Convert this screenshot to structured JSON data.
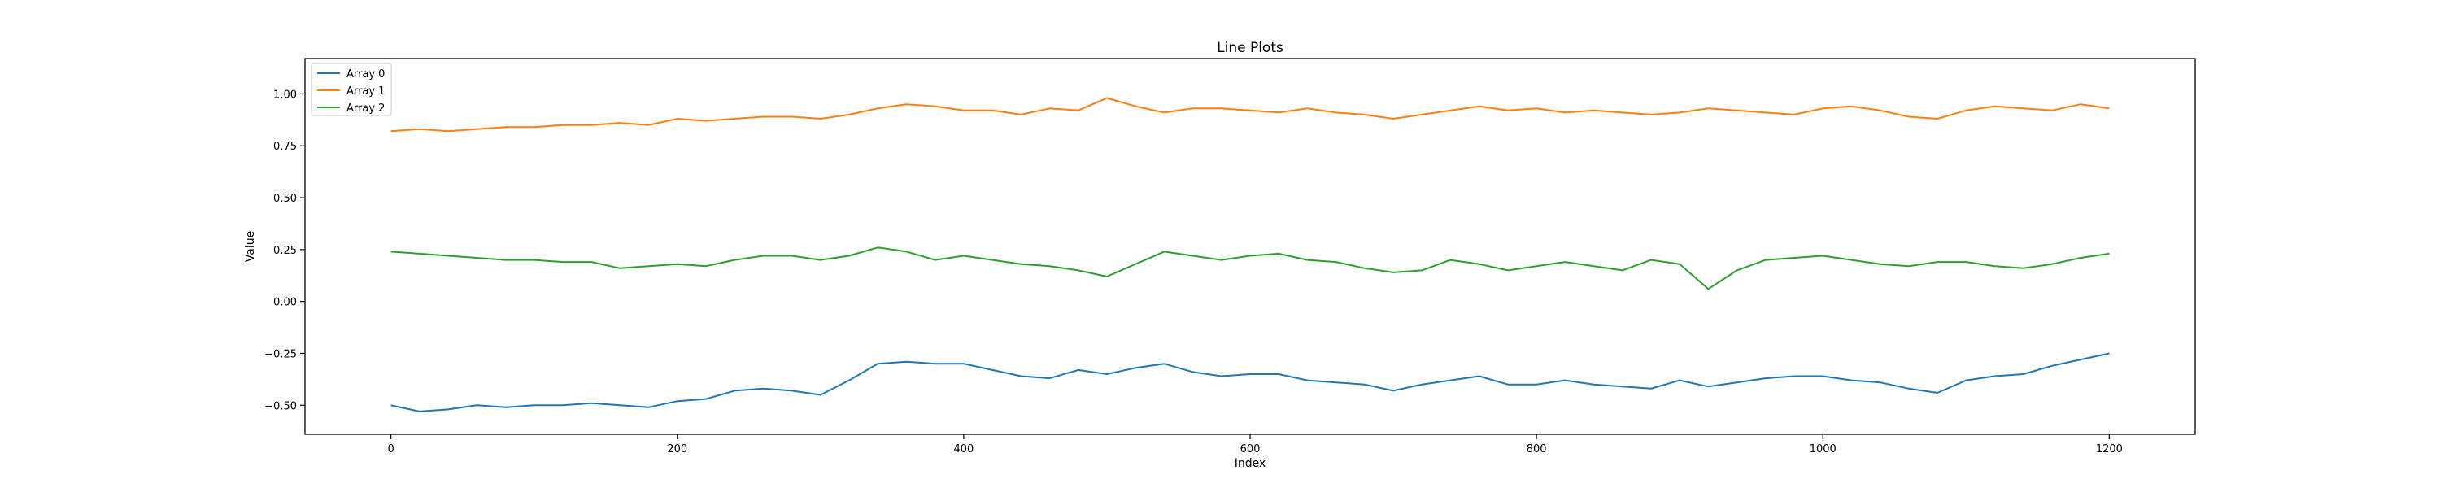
{
  "chart_data": {
    "type": "line",
    "title": "Line Plots",
    "xlabel": "Index",
    "ylabel": "Value",
    "xlim": [
      -60,
      1260
    ],
    "ylim": [
      -0.64,
      1.17
    ],
    "xticks": [
      0,
      200,
      400,
      600,
      800,
      1000,
      1200
    ],
    "xtick_labels": [
      "0",
      "200",
      "400",
      "600",
      "800",
      "1000",
      "1200"
    ],
    "yticks": [
      -0.5,
      -0.25,
      0.0,
      0.25,
      0.5,
      0.75,
      1.0
    ],
    "ytick_labels": [
      "−0.50",
      "−0.25",
      "0.00",
      "0.25",
      "0.50",
      "0.75",
      "1.00"
    ],
    "legend_position": "top-left",
    "grid": false,
    "series": [
      {
        "name": "Array 0",
        "color": "#1f77b4",
        "x": [
          0,
          20,
          40,
          60,
          80,
          100,
          120,
          140,
          160,
          180,
          200,
          220,
          240,
          260,
          280,
          300,
          320,
          340,
          360,
          380,
          400,
          420,
          440,
          460,
          480,
          500,
          520,
          540,
          560,
          580,
          600,
          620,
          640,
          660,
          680,
          700,
          720,
          740,
          760,
          780,
          800,
          820,
          840,
          860,
          880,
          900,
          920,
          940,
          960,
          980,
          1000,
          1020,
          1040,
          1060,
          1080,
          1100,
          1120,
          1140,
          1160,
          1180,
          1200
        ],
        "values": [
          -0.5,
          -0.53,
          -0.52,
          -0.5,
          -0.51,
          -0.5,
          -0.5,
          -0.49,
          -0.5,
          -0.51,
          -0.48,
          -0.47,
          -0.43,
          -0.42,
          -0.43,
          -0.45,
          -0.38,
          -0.3,
          -0.29,
          -0.3,
          -0.3,
          -0.33,
          -0.36,
          -0.37,
          -0.33,
          -0.35,
          -0.32,
          -0.3,
          -0.34,
          -0.36,
          -0.35,
          -0.35,
          -0.38,
          -0.39,
          -0.4,
          -0.43,
          -0.4,
          -0.38,
          -0.36,
          -0.4,
          -0.4,
          -0.38,
          -0.4,
          -0.41,
          -0.42,
          -0.38,
          -0.41,
          -0.39,
          -0.37,
          -0.36,
          -0.36,
          -0.38,
          -0.39,
          -0.42,
          -0.44,
          -0.38,
          -0.36,
          -0.35,
          -0.31,
          -0.28,
          -0.25
        ]
      },
      {
        "name": "Array 1",
        "color": "#ff7f0e",
        "x": [
          0,
          20,
          40,
          60,
          80,
          100,
          120,
          140,
          160,
          180,
          200,
          220,
          240,
          260,
          280,
          300,
          320,
          340,
          360,
          380,
          400,
          420,
          440,
          460,
          480,
          500,
          520,
          540,
          560,
          580,
          600,
          620,
          640,
          660,
          680,
          700,
          720,
          740,
          760,
          780,
          800,
          820,
          840,
          860,
          880,
          900,
          920,
          940,
          960,
          980,
          1000,
          1020,
          1040,
          1060,
          1080,
          1100,
          1120,
          1140,
          1160,
          1180,
          1200
        ],
        "values": [
          0.82,
          0.83,
          0.82,
          0.83,
          0.84,
          0.84,
          0.85,
          0.85,
          0.86,
          0.85,
          0.88,
          0.87,
          0.88,
          0.89,
          0.89,
          0.88,
          0.9,
          0.93,
          0.95,
          0.94,
          0.92,
          0.92,
          0.9,
          0.93,
          0.92,
          0.98,
          0.94,
          0.91,
          0.93,
          0.93,
          0.92,
          0.91,
          0.93,
          0.91,
          0.9,
          0.88,
          0.9,
          0.92,
          0.94,
          0.92,
          0.93,
          0.91,
          0.92,
          0.91,
          0.9,
          0.91,
          0.93,
          0.92,
          0.91,
          0.9,
          0.93,
          0.94,
          0.92,
          0.89,
          0.88,
          0.92,
          0.94,
          0.93,
          0.92,
          0.95,
          0.93
        ]
      },
      {
        "name": "Array 2",
        "color": "#2ca02c",
        "x": [
          0,
          20,
          40,
          60,
          80,
          100,
          120,
          140,
          160,
          180,
          200,
          220,
          240,
          260,
          280,
          300,
          320,
          340,
          360,
          380,
          400,
          420,
          440,
          460,
          480,
          500,
          520,
          540,
          560,
          580,
          600,
          620,
          640,
          660,
          680,
          700,
          720,
          740,
          760,
          780,
          800,
          820,
          840,
          860,
          880,
          900,
          920,
          940,
          960,
          980,
          1000,
          1020,
          1040,
          1060,
          1080,
          1100,
          1120,
          1140,
          1160,
          1180,
          1200
        ],
        "values": [
          0.24,
          0.23,
          0.22,
          0.21,
          0.2,
          0.2,
          0.19,
          0.19,
          0.16,
          0.17,
          0.18,
          0.17,
          0.2,
          0.22,
          0.22,
          0.2,
          0.22,
          0.26,
          0.24,
          0.2,
          0.22,
          0.2,
          0.18,
          0.17,
          0.15,
          0.12,
          0.18,
          0.24,
          0.22,
          0.2,
          0.22,
          0.23,
          0.2,
          0.19,
          0.16,
          0.14,
          0.15,
          0.2,
          0.18,
          0.15,
          0.17,
          0.19,
          0.17,
          0.15,
          0.2,
          0.18,
          0.06,
          0.15,
          0.2,
          0.21,
          0.22,
          0.2,
          0.18,
          0.17,
          0.19,
          0.19,
          0.17,
          0.16,
          0.18,
          0.21,
          0.23
        ]
      }
    ]
  }
}
